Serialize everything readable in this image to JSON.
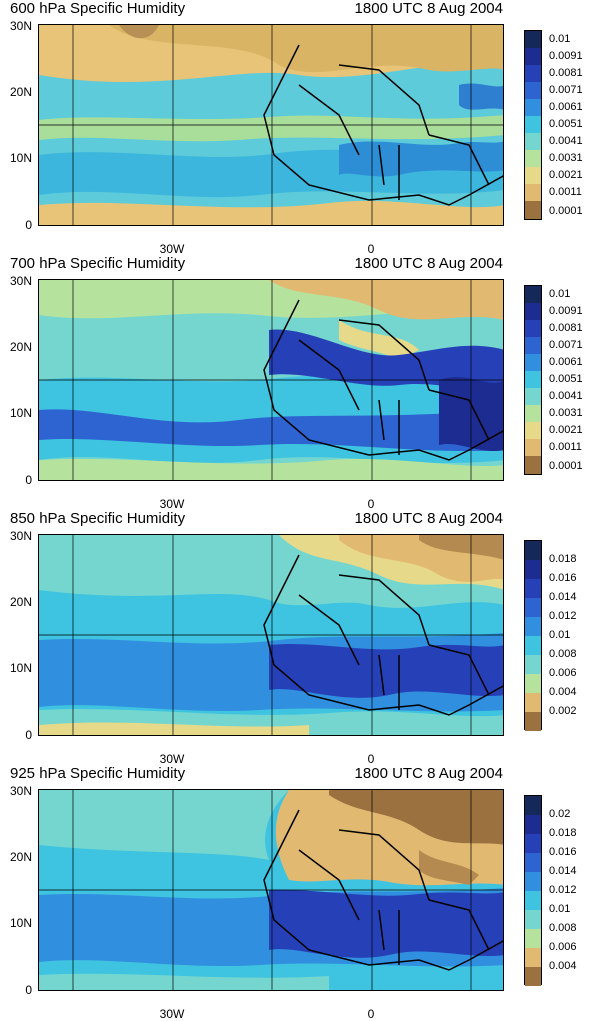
{
  "panels": [
    {
      "title": "600 hPa Specific Humidity",
      "time": "1800 UTC 8 Aug 2004",
      "colorbar_labels": [
        "0.01",
        "0.0091",
        "0.0081",
        "0.0071",
        "0.0061",
        "0.0051",
        "0.0041",
        "0.0031",
        "0.0021",
        "0.0011",
        "0.0001"
      ]
    },
    {
      "title": "700 hPa Specific Humidity",
      "time": "1800 UTC 8 Aug 2004",
      "colorbar_labels": [
        "0.01",
        "0.0091",
        "0.0081",
        "0.0071",
        "0.0061",
        "0.0051",
        "0.0041",
        "0.0031",
        "0.0021",
        "0.0011",
        "0.0001"
      ]
    },
    {
      "title": "850 hPa Specific Humidity",
      "time": "1800 UTC 8 Aug 2004",
      "colorbar_labels": [
        "0.018",
        "0.016",
        "0.014",
        "0.012",
        "0.01",
        "0.008",
        "0.006",
        "0.004",
        "0.002"
      ]
    },
    {
      "title": "925 hPa Specific Humidity",
      "time": "1800 UTC 8 Aug 2004",
      "colorbar_labels": [
        "0.02",
        "0.018",
        "0.016",
        "0.014",
        "0.012",
        "0.01",
        "0.008",
        "0.006",
        "0.004"
      ]
    }
  ],
  "axes": {
    "y_ticks": [
      "30N",
      "20N",
      "10N",
      "0"
    ],
    "x_ticks": [
      "30W",
      "0"
    ]
  },
  "colors": {
    "dry": "#9b7140",
    "tan": "#e7c478",
    "cyan": "#3ec3e0",
    "blue": "#2d64d2",
    "deep": "#1d2c90",
    "navy": "#14285a"
  }
}
